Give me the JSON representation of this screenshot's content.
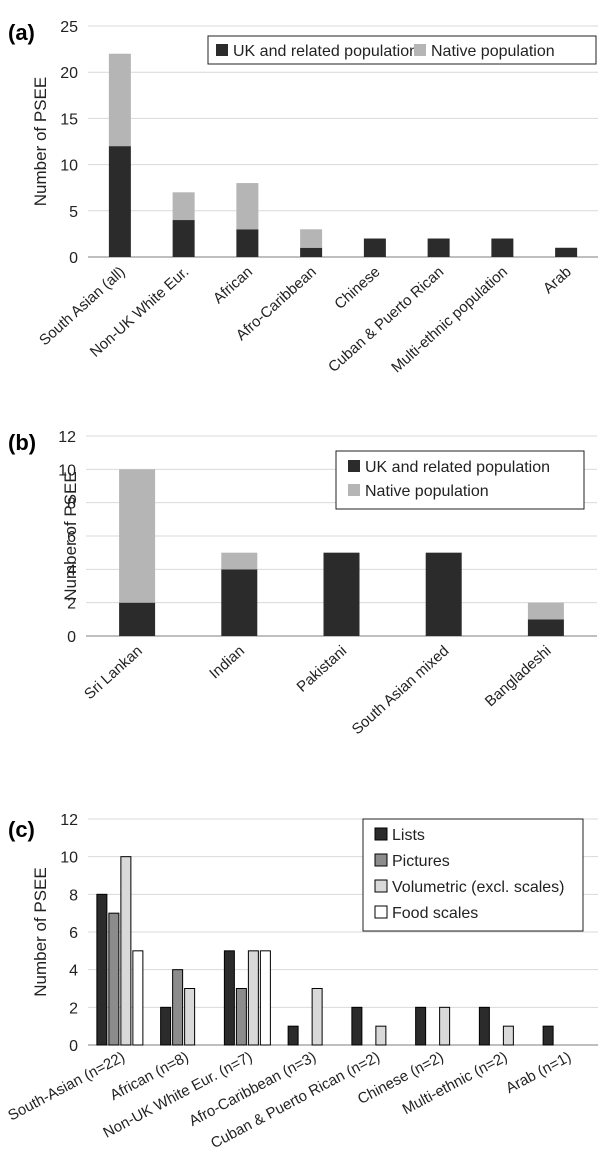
{
  "colors": {
    "dark": "#2b2b2b",
    "light": "#b5b5b5",
    "pictures": "#8c8c8c",
    "volumetric": "#d9d9d9",
    "food_scales": "#ffffff",
    "grid": "#d9d9d9",
    "axis": "#7f7f7f"
  },
  "chart_data": [
    {
      "panel_label": "(a)",
      "panel_letter": "a",
      "type": "bar",
      "stacked": true,
      "ylabel": "Number of PSEE",
      "ylim": [
        0,
        25
      ],
      "yticks": [
        0,
        5,
        10,
        15,
        20,
        25
      ],
      "grid": true,
      "legend_position": "top-right",
      "categories": [
        "South Asian (all)",
        "Non-UK White Eur.",
        "African",
        "Afro-Caribbean",
        "Chinese",
        "Cuban & Puerto Rican",
        "Multi-ethnic population",
        "Arab"
      ],
      "series": [
        {
          "name": "UK and related population",
          "values": [
            12,
            4,
            3,
            1,
            2,
            2,
            2,
            1
          ]
        },
        {
          "name": "Native population",
          "values": [
            10,
            3,
            5,
            2,
            0,
            0,
            0,
            0
          ]
        }
      ]
    },
    {
      "panel_label": "(b)",
      "panel_letter": "b",
      "type": "bar",
      "stacked": true,
      "ylabel": "Number of PSEE",
      "ylim": [
        0,
        12
      ],
      "yticks": [
        0,
        2,
        4,
        6,
        8,
        10,
        12
      ],
      "grid": true,
      "legend_position": "top-right",
      "categories": [
        "Sri Lankan",
        "Indian",
        "Pakistani",
        "South Asian mixed",
        "Bangladeshi"
      ],
      "series": [
        {
          "name": "UK and related population",
          "values": [
            2,
            4,
            5,
            5,
            1
          ]
        },
        {
          "name": "Native population",
          "values": [
            8,
            1,
            0,
            0,
            1
          ]
        }
      ]
    },
    {
      "panel_label": "(c)",
      "panel_letter": "c",
      "type": "bar",
      "stacked": false,
      "ylabel": "Number of PSEE",
      "ylim": [
        0,
        12
      ],
      "yticks": [
        0,
        2,
        4,
        6,
        8,
        10,
        12
      ],
      "grid": true,
      "legend_position": "top-right",
      "categories": [
        "South-Asian (n=22)",
        "African (n=8)",
        "Non-UK White Eur. (n=7)",
        "Afro-Caribbean (n=3)",
        "Cuban & Puerto Rican (n=2)",
        "Chinese (n=2)",
        "Multi-ethnic (n=2)",
        "Arab (n=1)"
      ],
      "series": [
        {
          "name": "Lists",
          "values": [
            8,
            2,
            5,
            1,
            2,
            2,
            2,
            1
          ]
        },
        {
          "name": "Pictures",
          "values": [
            7,
            4,
            3,
            0,
            0,
            0,
            0,
            0
          ]
        },
        {
          "name": "Volumetric (excl. scales)",
          "values": [
            10,
            3,
            5,
            3,
            1,
            2,
            1,
            0
          ]
        },
        {
          "name": "Food scales",
          "values": [
            5,
            0,
            5,
            0,
            0,
            0,
            0,
            0
          ]
        }
      ]
    }
  ]
}
